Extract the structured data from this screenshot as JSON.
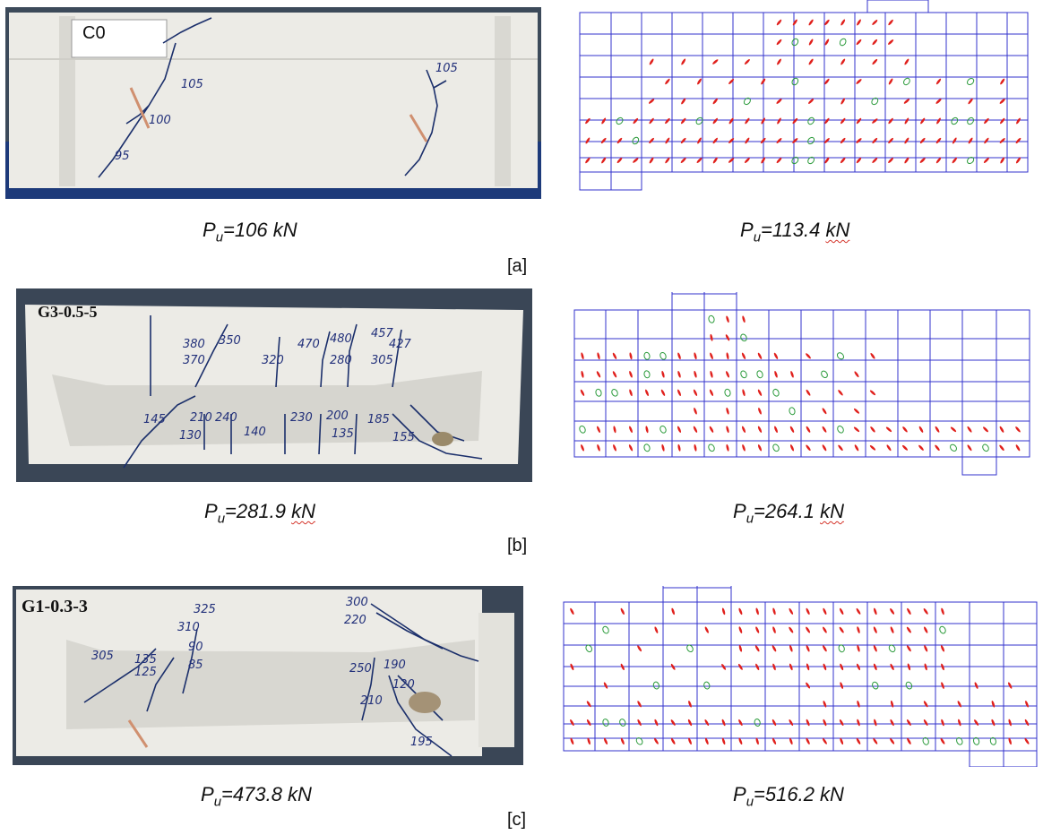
{
  "panels": [
    {
      "label": "[a]",
      "photo": {
        "specimen_tag": "C0",
        "crack_labels": [
          "105",
          "100",
          "95",
          "105"
        ]
      },
      "experimental_load": {
        "symbol": "P",
        "sub": "u",
        "value": "=106 kN"
      },
      "numerical_load": {
        "symbol": "P",
        "sub": "u",
        "value": "=113.4",
        "unit": "kN"
      }
    },
    {
      "label": "[b]",
      "photo": {
        "specimen_tag": "G3-0.5-5",
        "crack_labels": [
          "380",
          "370",
          "350",
          "320",
          "470",
          "480",
          "457",
          "427",
          "280",
          "305",
          "145",
          "130",
          "210",
          "240",
          "140",
          "230",
          "200",
          "135",
          "185",
          "155"
        ]
      },
      "experimental_load": {
        "symbol": "P",
        "sub": "u",
        "value": "=281.9",
        "unit": "kN"
      },
      "numerical_load": {
        "symbol": "P",
        "sub": "u",
        "value": "=264.1",
        "unit": "kN"
      }
    },
    {
      "label": "[c]",
      "photo": {
        "specimen_tag": "G1-0.3-3",
        "crack_labels": [
          "325",
          "310",
          "90",
          "85",
          "305",
          "135",
          "125",
          "300",
          "220",
          "250",
          "190",
          "120",
          "210",
          "195"
        ]
      },
      "experimental_load": {
        "symbol": "P",
        "sub": "u",
        "value": "=473.8 kN"
      },
      "numerical_load": {
        "symbol": "P",
        "sub": "u",
        "value": "=516.2 kN"
      }
    }
  ],
  "colors": {
    "crack_marks": "#e0201c",
    "mesh_lines": "#3333cc",
    "ink": "#22307a",
    "crushed_marks": "#2a9a3a"
  }
}
